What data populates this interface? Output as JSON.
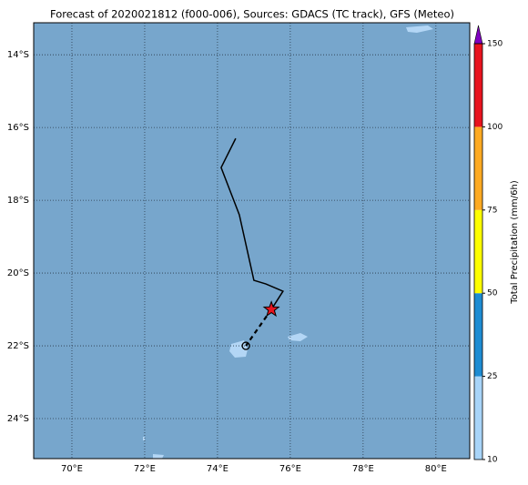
{
  "chart_data": {
    "type": "map",
    "title": "Forecast of 2020021812 (f000-006), Sources: GDACS (TC track), GFS (Meteo)",
    "xlim": [
      68.95,
      80.93
    ],
    "ylim": [
      -25.1,
      -13.12
    ],
    "xticks": [
      {
        "value": 70,
        "label": "70°E"
      },
      {
        "value": 72,
        "label": "72°E"
      },
      {
        "value": 74,
        "label": "74°E"
      },
      {
        "value": 76,
        "label": "76°E"
      },
      {
        "value": 78,
        "label": "78°E"
      },
      {
        "value": 80,
        "label": "80°E"
      }
    ],
    "yticks": [
      {
        "value": -14,
        "label": "14°S"
      },
      {
        "value": -16,
        "label": "16°S"
      },
      {
        "value": -18,
        "label": "18°S"
      },
      {
        "value": -20,
        "label": "20°S"
      },
      {
        "value": -22,
        "label": "22°S"
      },
      {
        "value": -24,
        "label": "24°S"
      }
    ],
    "grid": true,
    "ocean_color": "#77a6cc",
    "track": {
      "lon": [
        74.5,
        74.1,
        74.6,
        75.0,
        75.33,
        75.8,
        75.48
      ],
      "lat": [
        -16.3,
        -17.1,
        -18.4,
        -20.2,
        -20.3,
        -20.5,
        -21.0
      ]
    },
    "forecast": {
      "lon": [
        75.48,
        74.78
      ],
      "lat": [
        -21.0,
        -22.0
      ]
    },
    "colorbar": {
      "label": "Total Precipitation (mm/6h)",
      "ticks": [
        10,
        25,
        50,
        75,
        100,
        150
      ],
      "colors": [
        "#a8d4f8",
        "#1e8cd2",
        "#ffff00",
        "#ffaa22",
        "#e8141e"
      ],
      "extend_color": "#8000c0"
    }
  }
}
